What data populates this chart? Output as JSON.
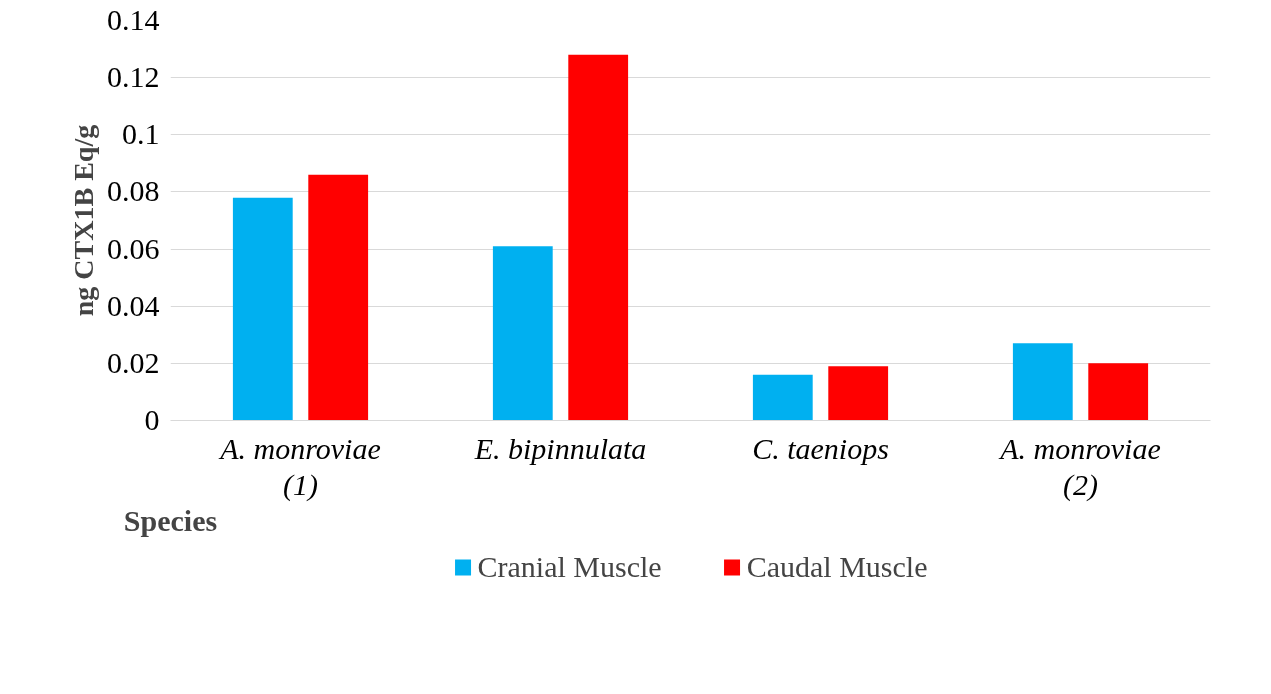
{
  "chart_data": {
    "type": "bar",
    "xlabel": "Species",
    "ylabel": "ng CTX1B Eq/g",
    "categories": [
      "A. monroviae\n(1)",
      "E. bipinnulata",
      "C. taeniops",
      "A. monroviae\n(2)"
    ],
    "series": [
      {
        "name": "Cranial Muscle",
        "color": "#00b0f0",
        "values": [
          0.078,
          0.061,
          0.016,
          0.027
        ]
      },
      {
        "name": "Caudal Muscle",
        "color": "#ff0000",
        "values": [
          0.086,
          0.128,
          0.019,
          0.02
        ]
      }
    ],
    "ylim": [
      0,
      0.14
    ],
    "yticks": [
      0,
      0.02,
      0.04,
      0.06,
      0.08,
      {
        "value": 0.1,
        "label": "0.1"
      },
      0.12,
      0.14
    ],
    "grid": "y",
    "legend": "bottom"
  }
}
